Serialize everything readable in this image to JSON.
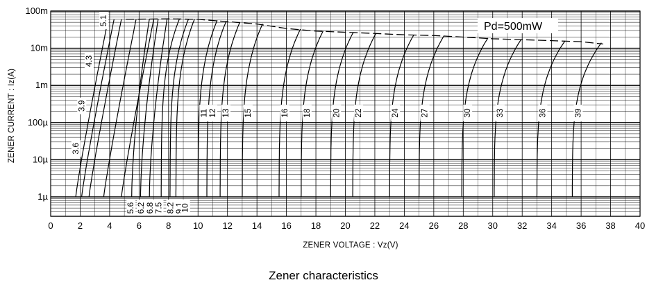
{
  "caption": "Zener characteristics",
  "chart_data": {
    "type": "line",
    "title": "",
    "xlabel": "ZENER  VOLTAGE : Vz(V)",
    "ylabel": "ZENER  CURRENT : Iz(A)",
    "x_ticks": [
      "0",
      "2",
      "4",
      "6",
      "8",
      "10",
      "12",
      "14",
      "16",
      "18",
      "20",
      "22",
      "24",
      "26",
      "28",
      "30",
      "32",
      "34",
      "36",
      "38",
      "40"
    ],
    "y_scale": "log",
    "ylim": [
      5e-07,
      0.1
    ],
    "xlim": [
      0,
      40
    ],
    "y_ticks": [
      {
        "value": 1e-06,
        "label": "1µ"
      },
      {
        "value": 1e-05,
        "label": "10µ"
      },
      {
        "value": 0.0001,
        "label": "100µ"
      },
      {
        "value": 0.001,
        "label": "1m"
      },
      {
        "value": 0.01,
        "label": "10m"
      },
      {
        "value": 0.1,
        "label": "100m"
      }
    ],
    "grid": true,
    "power_limit": {
      "label": "Pd=500mW",
      "style": "dashed",
      "points": [
        [
          5.1,
          0.06
        ],
        [
          8.0,
          0.062
        ],
        [
          10.0,
          0.06
        ],
        [
          12.0,
          0.052
        ],
        [
          14.0,
          0.045
        ],
        [
          16.0,
          0.034
        ],
        [
          18.0,
          0.029
        ],
        [
          20.0,
          0.027
        ],
        [
          22.0,
          0.025
        ],
        [
          24.0,
          0.023
        ],
        [
          26.0,
          0.022
        ],
        [
          28.0,
          0.02
        ],
        [
          30.0,
          0.018
        ],
        [
          32.0,
          0.017
        ],
        [
          34.0,
          0.016
        ],
        [
          36.0,
          0.015
        ],
        [
          37.5,
          0.013
        ]
      ]
    },
    "series": [
      {
        "name": "3.6",
        "vz": 1.7,
        "knee_shape": "soft"
      },
      {
        "name": "3.9",
        "vz": 2.1,
        "knee_shape": "soft"
      },
      {
        "name": "4.3",
        "vz": 2.6,
        "knee_shape": "soft"
      },
      {
        "name": "5.1",
        "vz": 3.6,
        "knee_shape": "soft"
      },
      {
        "name": "5.6",
        "vz": 4.8,
        "knee_shape": "soft"
      },
      {
        "name": "6.2",
        "vz": 5.5,
        "knee_shape": "medium"
      },
      {
        "name": "6.8",
        "vz": 6.1,
        "knee_shape": "medium"
      },
      {
        "name": "7.5",
        "vz": 6.7,
        "knee_shape": "medium"
      },
      {
        "name": "8.2",
        "vz": 7.5,
        "knee_shape": "sharp"
      },
      {
        "name": "9.1",
        "vz": 8.1,
        "knee_shape": "sharp"
      },
      {
        "name": "10",
        "vz": 8.5,
        "knee_shape": "sharp"
      },
      {
        "name": "11",
        "vz": 10.0,
        "knee_shape": "sharp"
      },
      {
        "name": "12",
        "vz": 10.6,
        "knee_shape": "sharp"
      },
      {
        "name": "13",
        "vz": 11.5,
        "knee_shape": "sharp"
      },
      {
        "name": "15",
        "vz": 13.0,
        "knee_shape": "sharp"
      },
      {
        "name": "16",
        "vz": 15.5,
        "knee_shape": "sharp"
      },
      {
        "name": "18",
        "vz": 17.0,
        "knee_shape": "sharp"
      },
      {
        "name": "20",
        "vz": 19.0,
        "knee_shape": "sharp"
      },
      {
        "name": "22",
        "vz": 20.5,
        "knee_shape": "sharp"
      },
      {
        "name": "24",
        "vz": 23.0,
        "knee_shape": "sharp"
      },
      {
        "name": "27",
        "vz": 25.0,
        "knee_shape": "sharp"
      },
      {
        "name": "30",
        "vz": 27.9,
        "knee_shape": "sharp"
      },
      {
        "name": "33",
        "vz": 30.1,
        "knee_shape": "sharp"
      },
      {
        "name": "36",
        "vz": 33.0,
        "knee_shape": "sharp"
      },
      {
        "name": "39",
        "vz": 35.4,
        "knee_shape": "sharp"
      }
    ]
  }
}
